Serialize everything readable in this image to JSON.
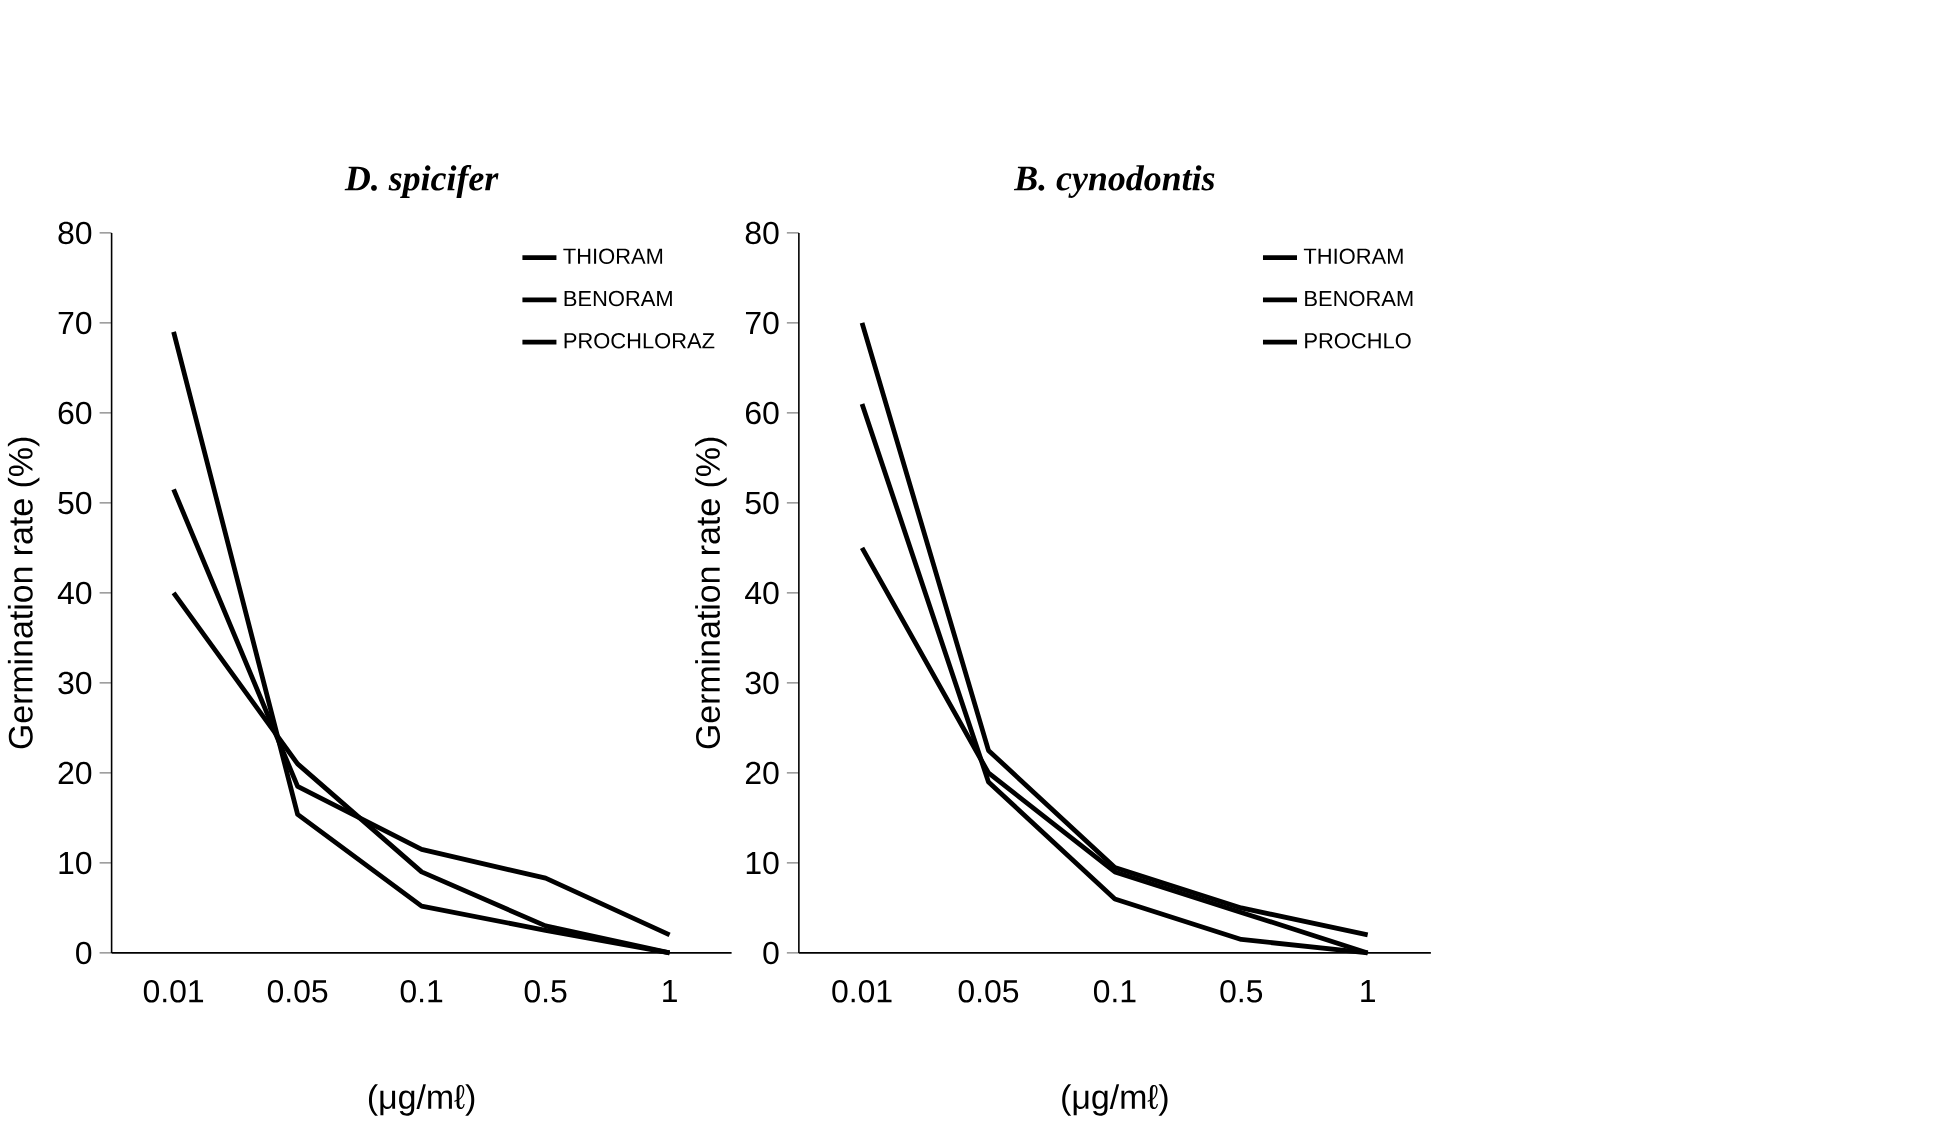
{
  "chart_data": [
    {
      "type": "line",
      "title": "D. spicifer",
      "xlabel": "(μg/mℓ)",
      "ylabel": "Germination rate (%)",
      "categories": [
        "0.01",
        "0.05",
        "0.1",
        "0.5",
        "1"
      ],
      "ylim": [
        0,
        80
      ],
      "yticks": [
        0,
        10,
        20,
        30,
        40,
        50,
        60,
        70,
        80
      ],
      "legend": "top right",
      "line_style": "solid",
      "series": [
        {
          "name": "THIORAM",
          "color": "#000000",
          "values": [
            69,
            15.4,
            5.2,
            2.5,
            0
          ]
        },
        {
          "name": "BENORAM",
          "color": "#000000",
          "values": [
            51.5,
            18.5,
            11.5,
            8.3,
            2
          ]
        },
        {
          "name": "PROCHLORAZ",
          "color": "#000000",
          "values": [
            40,
            21,
            9,
            3,
            0
          ]
        }
      ]
    },
    {
      "type": "line",
      "title": "B. cynodontis",
      "xlabel": "(μg/mℓ)",
      "ylabel": "Germination rate (%)",
      "categories": [
        "0.01",
        "0.05",
        "0.1",
        "0.5",
        "1"
      ],
      "ylim": [
        0,
        80
      ],
      "yticks": [
        0,
        10,
        20,
        30,
        40,
        50,
        60,
        70,
        80
      ],
      "legend": "top right",
      "line_style": "solid",
      "series": [
        {
          "name": "THIORAM",
          "color": "#000000",
          "values": [
            70,
            22.5,
            9.5,
            5,
            2
          ]
        },
        {
          "name": "BENORAM",
          "color": "#000000",
          "values": [
            61,
            19,
            6,
            1.5,
            0
          ]
        },
        {
          "name": "PROCHLO",
          "color": "#000000",
          "values": [
            45,
            20,
            9,
            4.5,
            0
          ]
        }
      ]
    }
  ]
}
